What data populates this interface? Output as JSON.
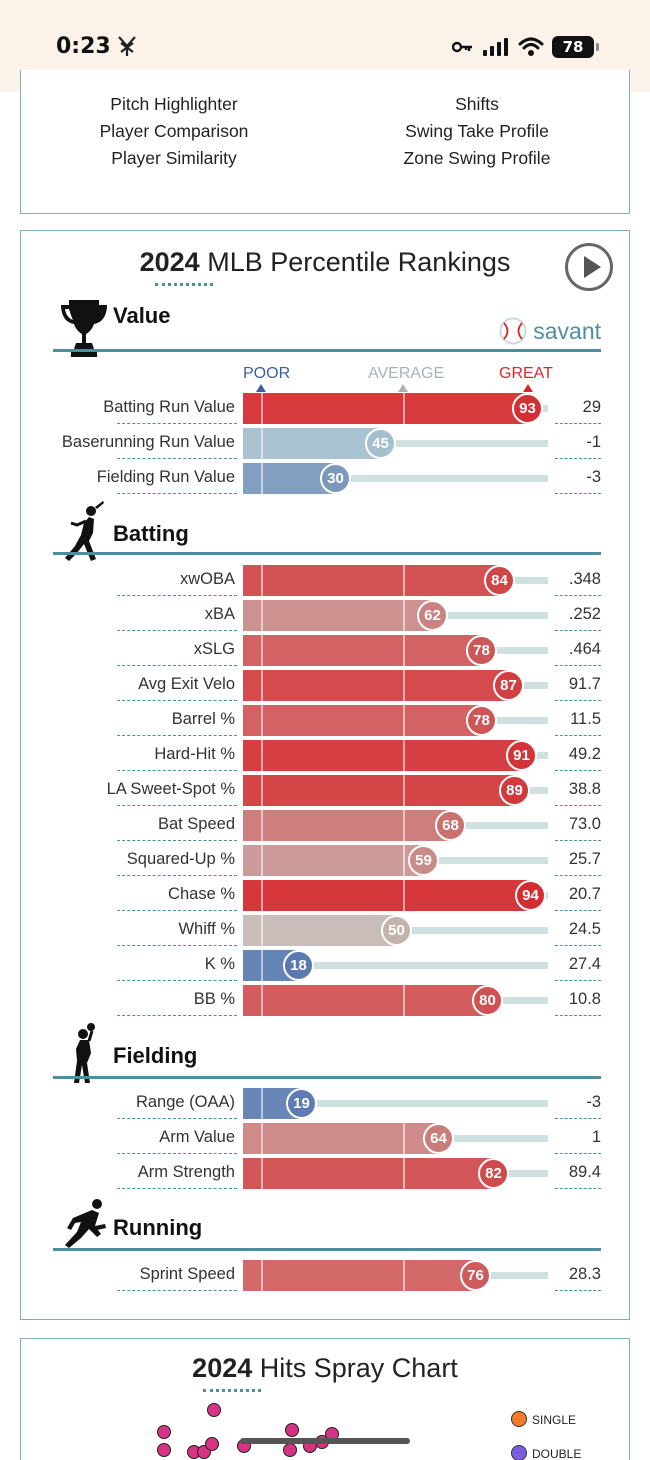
{
  "status_bar": {
    "time": "0:23",
    "battery": "78"
  },
  "links": [
    {
      "label": "Pitch Highlighter",
      "col": 0,
      "row": 0
    },
    {
      "label": "Shifts",
      "col": 1,
      "row": 0
    },
    {
      "label": "Player Comparison",
      "col": 0,
      "row": 1
    },
    {
      "label": "Swing Take Profile",
      "col": 1,
      "row": 1
    },
    {
      "label": "Player Similarity",
      "col": 0,
      "row": 2
    },
    {
      "label": "Zone Swing Profile",
      "col": 1,
      "row": 2
    }
  ],
  "rankings": {
    "title_year": "2024",
    "title_rest": " MLB Percentile Rankings",
    "brand": "savant",
    "scale": {
      "poor": "POOR",
      "average": "AVERAGE",
      "great": "GREAT"
    },
    "sections": [
      {
        "title": "Value",
        "icon": "trophy-icon",
        "metrics": [
          {
            "label": "Batting Run Value",
            "percentile": 93,
            "value": "29"
          },
          {
            "label": "Baserunning Run Value",
            "percentile": 45,
            "value": "-1"
          },
          {
            "label": "Fielding Run Value",
            "percentile": 30,
            "value": "-3"
          }
        ]
      },
      {
        "title": "Batting",
        "icon": "batter-icon",
        "metrics": [
          {
            "label": "xwOBA",
            "percentile": 84,
            "value": ".348"
          },
          {
            "label": "xBA",
            "percentile": 62,
            "value": ".252"
          },
          {
            "label": "xSLG",
            "percentile": 78,
            "value": ".464"
          },
          {
            "label": "Avg Exit Velo",
            "percentile": 87,
            "value": "91.7"
          },
          {
            "label": "Barrel %",
            "percentile": 78,
            "value": "11.5"
          },
          {
            "label": "Hard-Hit %",
            "percentile": 91,
            "value": "49.2"
          },
          {
            "label": "LA Sweet-Spot %",
            "percentile": 89,
            "value": "38.8"
          },
          {
            "label": "Bat Speed",
            "percentile": 68,
            "value": "73.0"
          },
          {
            "label": "Squared-Up %",
            "percentile": 59,
            "value": "25.7"
          },
          {
            "label": "Chase %",
            "percentile": 94,
            "value": "20.7"
          },
          {
            "label": "Whiff %",
            "percentile": 50,
            "value": "24.5"
          },
          {
            "label": "K %",
            "percentile": 18,
            "value": "27.4"
          },
          {
            "label": "BB %",
            "percentile": 80,
            "value": "10.8"
          }
        ]
      },
      {
        "title": "Fielding",
        "icon": "fielder-icon",
        "metrics": [
          {
            "label": "Range (OAA)",
            "percentile": 19,
            "value": "-3"
          },
          {
            "label": "Arm Value",
            "percentile": 64,
            "value": "1"
          },
          {
            "label": "Arm Strength",
            "percentile": 82,
            "value": "89.4"
          }
        ]
      },
      {
        "title": "Running",
        "icon": "runner-icon",
        "metrics": [
          {
            "label": "Sprint Speed",
            "percentile": 76,
            "value": "28.3"
          }
        ]
      }
    ]
  },
  "spray": {
    "title_year": "2024",
    "title_rest": " Hits Spray Chart",
    "legend": [
      {
        "label": "SINGLE",
        "color": "#f07c28"
      },
      {
        "label": "DOUBLE",
        "color": "#7b5de0"
      }
    ]
  },
  "colors": {
    "accent": "#4d8ea0",
    "poor": "#3d5fa8",
    "average": "#b7b7b7",
    "great": "#d8282c"
  }
}
